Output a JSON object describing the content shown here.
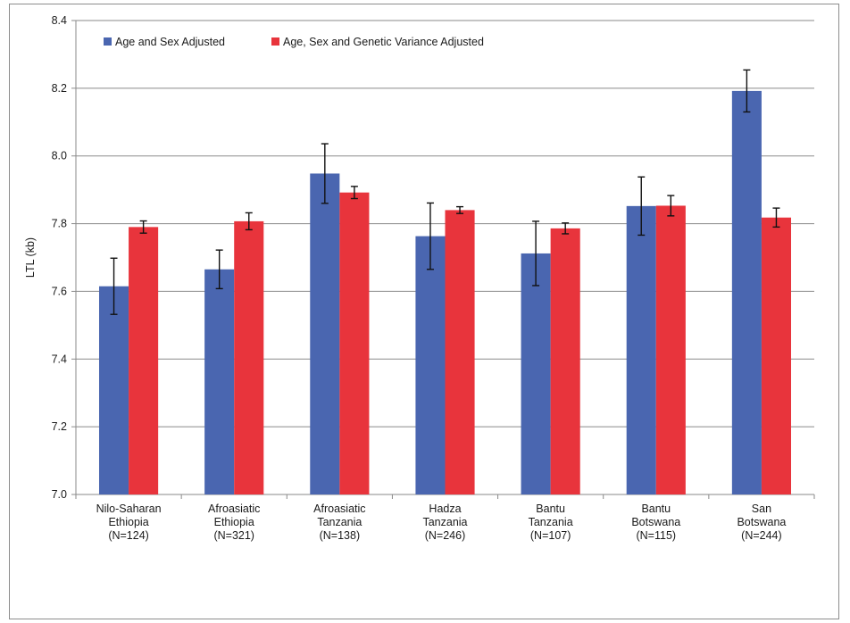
{
  "chart_data": {
    "type": "bar",
    "title": "",
    "xlabel": "",
    "ylabel": "LTL (kb)",
    "ylim": [
      7.0,
      8.4
    ],
    "yticks": [
      "7.0",
      "7.2",
      "7.4",
      "7.6",
      "7.8",
      "8.0",
      "8.2",
      "8.4"
    ],
    "grid": true,
    "legend_position": "top-left",
    "categories": [
      [
        "Nilo-Saharan",
        "Ethiopia",
        "(N=124)"
      ],
      [
        "Afroasiatic",
        "Ethiopia",
        "(N=321)"
      ],
      [
        "Afroasiatic",
        "Tanzania",
        "(N=138)"
      ],
      [
        "Hadza",
        "Tanzania",
        "(N=246)"
      ],
      [
        "Bantu",
        "Tanzania",
        "(N=107)"
      ],
      [
        "Bantu",
        "Botswana",
        "(N=115)"
      ],
      [
        "San",
        "Botswana",
        "(N=244)"
      ]
    ],
    "series": [
      {
        "name": "Age and Sex Adjusted",
        "color": "#4a66b0",
        "values": [
          7.615,
          7.665,
          7.948,
          7.763,
          7.712,
          7.852,
          8.192
        ],
        "error": [
          0.083,
          0.057,
          0.088,
          0.098,
          0.095,
          0.086,
          0.062
        ]
      },
      {
        "name": "Age, Sex and Genetic Variance Adjusted",
        "color": "#e8343c",
        "values": [
          7.79,
          7.807,
          7.892,
          7.84,
          7.786,
          7.853,
          7.818
        ],
        "error": [
          0.018,
          0.025,
          0.018,
          0.01,
          0.016,
          0.03,
          0.028
        ]
      }
    ]
  }
}
